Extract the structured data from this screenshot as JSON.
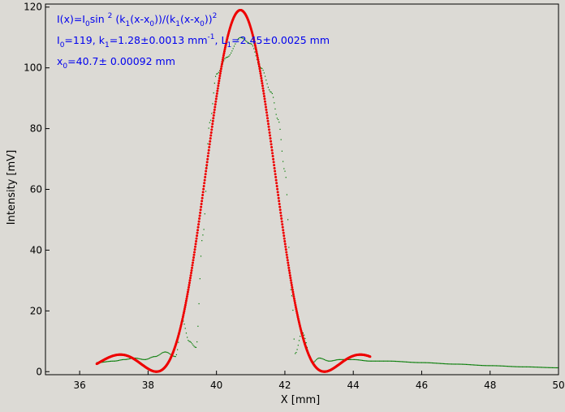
{
  "chart_data": {
    "type": "scatter",
    "xlabel": "X [mm]",
    "ylabel": "Intensity [mV]",
    "xlim": [
      35,
      50
    ],
    "ylim": [
      -1,
      121
    ],
    "x_ticks": [
      36,
      38,
      40,
      42,
      44,
      46,
      48,
      50
    ],
    "y_ticks": [
      0,
      20,
      40,
      60,
      80,
      100,
      120
    ],
    "grid": false,
    "annotation": {
      "line1": [
        {
          "t": "I(x)=I"
        },
        {
          "t": "0",
          "sub": true
        },
        {
          "t": "sin "
        },
        {
          "t": "2",
          "sup": true
        },
        {
          "t": " (k"
        },
        {
          "t": "1",
          "sub": true
        },
        {
          "t": "(x-x"
        },
        {
          "t": "0",
          "sub": true
        },
        {
          "t": "))/(k"
        },
        {
          "t": "1",
          "sub": true
        },
        {
          "t": "(x-x"
        },
        {
          "t": "0",
          "sub": true
        },
        {
          "t": "))"
        },
        {
          "t": "2",
          "sup": true
        }
      ],
      "line2": [
        {
          "t": "I"
        },
        {
          "t": "0",
          "sub": true
        },
        {
          "t": "=119,  k"
        },
        {
          "t": "1",
          "sub": true
        },
        {
          "t": "=1.28±0.0013 mm"
        },
        {
          "t": "-1",
          "sup": true
        },
        {
          "t": ",  L"
        },
        {
          "t": "1",
          "sub": true
        },
        {
          "t": "=2.45±0.0025 mm"
        }
      ],
      "line3": [
        {
          "t": "x"
        },
        {
          "t": "0",
          "sub": true
        },
        {
          "t": "=40.7±   0.00092 mm"
        }
      ]
    },
    "series": [
      {
        "kind": "fit",
        "color": "#ee0000",
        "x_range": [
          36.5,
          44.5
        ],
        "params": {
          "I0": 119,
          "k1": 1.28,
          "x0": 40.7
        }
      },
      {
        "kind": "measured",
        "color": "#007a00",
        "x": [
          36.5,
          37.0,
          37.3,
          37.6,
          37.9,
          38.2,
          38.5,
          38.8,
          39.0,
          39.2,
          39.4,
          39.6,
          39.8,
          40.0,
          40.3,
          40.7,
          41.0,
          41.3,
          41.6,
          41.8,
          42.0,
          42.2,
          42.3,
          42.5,
          42.8,
          43.0,
          43.3,
          43.6,
          44.0,
          44.5,
          45.0,
          46.0,
          47.0,
          48.0,
          49.0,
          50.0
        ],
        "y": [
          3,
          3.5,
          4,
          4.5,
          4,
          5,
          6.5,
          5,
          17,
          10,
          8,
          45,
          82,
          98,
          103.5,
          110,
          108,
          100,
          92,
          83,
          66,
          25,
          6,
          13,
          3,
          4.5,
          3.5,
          4,
          4,
          3.5,
          3.5,
          3,
          2.5,
          2,
          1.6,
          1.3
        ]
      }
    ]
  }
}
